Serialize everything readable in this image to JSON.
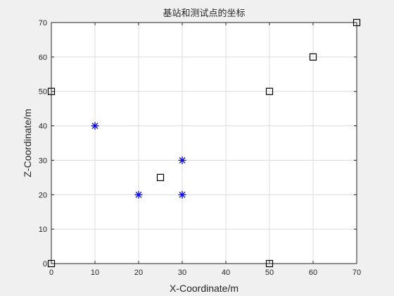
{
  "chart_data": {
    "type": "scatter",
    "title": "基站和测试点的坐标",
    "xlabel": "X-Coordinate/m",
    "ylabel": "Z-Coordinate/m",
    "xlim": [
      0,
      70
    ],
    "ylim": [
      0,
      70
    ],
    "xticks": [
      0,
      10,
      20,
      30,
      40,
      50,
      60,
      70
    ],
    "yticks": [
      0,
      10,
      20,
      30,
      40,
      50,
      60,
      70
    ],
    "grid": true,
    "series": [
      {
        "marker": "square",
        "color": "#000000",
        "points": [
          [
            0,
            0
          ],
          [
            0,
            50
          ],
          [
            25,
            25
          ],
          [
            50,
            50
          ],
          [
            50,
            0
          ],
          [
            60,
            60
          ],
          [
            70,
            70
          ]
        ]
      },
      {
        "marker": "asterisk",
        "color": "#0000ff",
        "points": [
          [
            10,
            40
          ],
          [
            20,
            20
          ],
          [
            30,
            30
          ],
          [
            30,
            20
          ]
        ]
      }
    ]
  }
}
